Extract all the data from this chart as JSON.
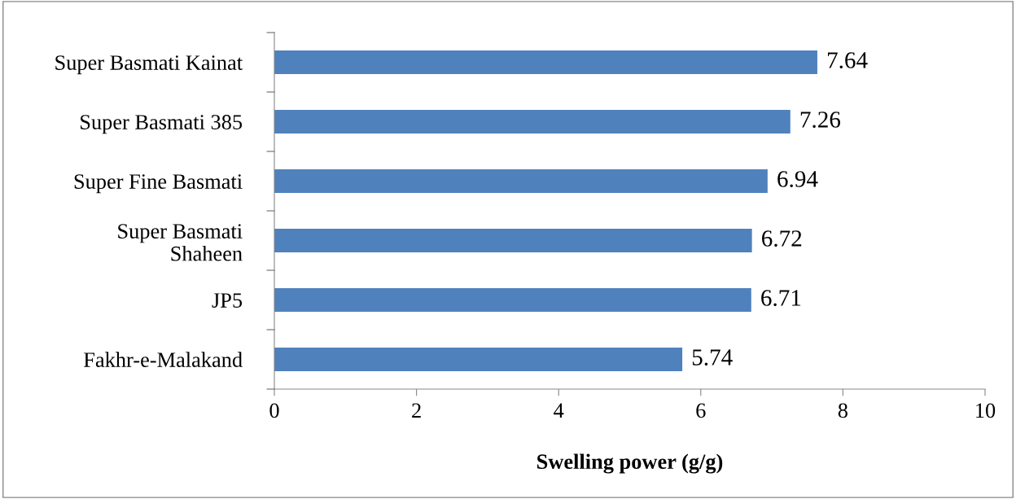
{
  "chart_data": {
    "type": "bar",
    "orientation": "horizontal",
    "xlabel": "Swelling power (g/g)",
    "categories": [
      "Super Basmati Kainat",
      "Super Basmati 385",
      "Super Fine Basmati",
      "Super Basmati\nShaheen",
      "JP5",
      "Fakhr-e-Malakand"
    ],
    "values": [
      7.64,
      7.26,
      6.94,
      6.72,
      6.71,
      5.74
    ],
    "color": "#4f81bd",
    "xlim": [
      0,
      10
    ],
    "xticks": [
      0,
      2,
      4,
      6,
      8,
      10
    ],
    "grid": false,
    "data_labels": true
  }
}
